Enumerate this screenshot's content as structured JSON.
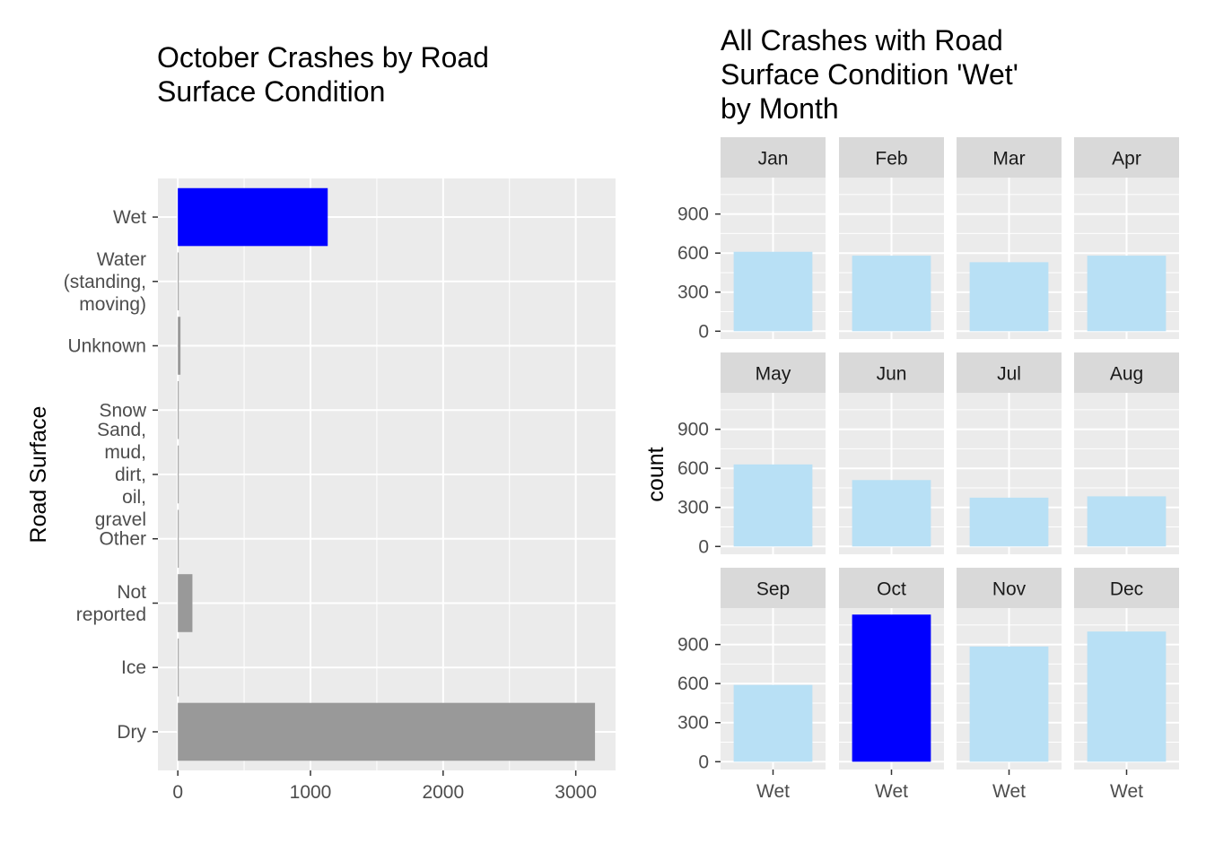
{
  "chart_data": [
    {
      "type": "bar",
      "orientation": "horizontal",
      "title_lines": [
        "October Crashes by Road",
        "Surface Condition"
      ],
      "ylabel": "Road Surface",
      "xlabel": "",
      "xlim": [
        -150,
        3300
      ],
      "x_ticks": [
        0,
        1000,
        2000,
        3000
      ],
      "grid": true,
      "categories": [
        {
          "label_lines": [
            "Dry"
          ],
          "value": 3145,
          "color": "#999999"
        },
        {
          "label_lines": [
            "Ice"
          ],
          "value": 5,
          "color": "#999999"
        },
        {
          "label_lines": [
            "Not",
            "reported"
          ],
          "value": 110,
          "color": "#999999"
        },
        {
          "label_lines": [
            "Other"
          ],
          "value": 4,
          "color": "#999999"
        },
        {
          "label_lines": [
            "Sand,",
            "mud,",
            "dirt,",
            "oil,",
            "gravel"
          ],
          "value": 3,
          "color": "#999999"
        },
        {
          "label_lines": [
            "Snow"
          ],
          "value": 3,
          "color": "#999999"
        },
        {
          "label_lines": [
            "Unknown"
          ],
          "value": 20,
          "color": "#999999"
        },
        {
          "label_lines": [
            "Water",
            "(standing,",
            "moving)"
          ],
          "value": 6,
          "color": "#999999"
        },
        {
          "label_lines": [
            "Wet"
          ],
          "value": 1130,
          "color": "#0000ff"
        }
      ]
    },
    {
      "type": "bar",
      "facets": true,
      "title_lines": [
        "All Crashes with Road",
        "Surface Condition 'Wet'",
        "by Month"
      ],
      "ylabel": "count",
      "xlabel": "",
      "x_category": "Wet",
      "ylim": [
        -60,
        1180
      ],
      "y_ticks": [
        0,
        300,
        600,
        900
      ],
      "grid": true,
      "panels": [
        {
          "month": "Jan",
          "value": 610,
          "color": "#b8e0f5"
        },
        {
          "month": "Feb",
          "value": 580,
          "color": "#b8e0f5"
        },
        {
          "month": "Mar",
          "value": 530,
          "color": "#b8e0f5"
        },
        {
          "month": "Apr",
          "value": 580,
          "color": "#b8e0f5"
        },
        {
          "month": "May",
          "value": 630,
          "color": "#b8e0f5"
        },
        {
          "month": "Jun",
          "value": 510,
          "color": "#b8e0f5"
        },
        {
          "month": "Jul",
          "value": 375,
          "color": "#b8e0f5"
        },
        {
          "month": "Aug",
          "value": 385,
          "color": "#b8e0f5"
        },
        {
          "month": "Sep",
          "value": 590,
          "color": "#b8e0f5"
        },
        {
          "month": "Oct",
          "value": 1130,
          "color": "#0000ff"
        },
        {
          "month": "Nov",
          "value": 885,
          "color": "#b8e0f5"
        },
        {
          "month": "Dec",
          "value": 1000,
          "color": "#b8e0f5"
        }
      ]
    }
  ],
  "colors": {
    "panel_background": "#ebebeb",
    "grid": "#ffffff",
    "strip_background": "#d9d9d9",
    "highlight": "#0000ff",
    "muted_bar": "#999999",
    "light_bar": "#b8e0f5"
  }
}
